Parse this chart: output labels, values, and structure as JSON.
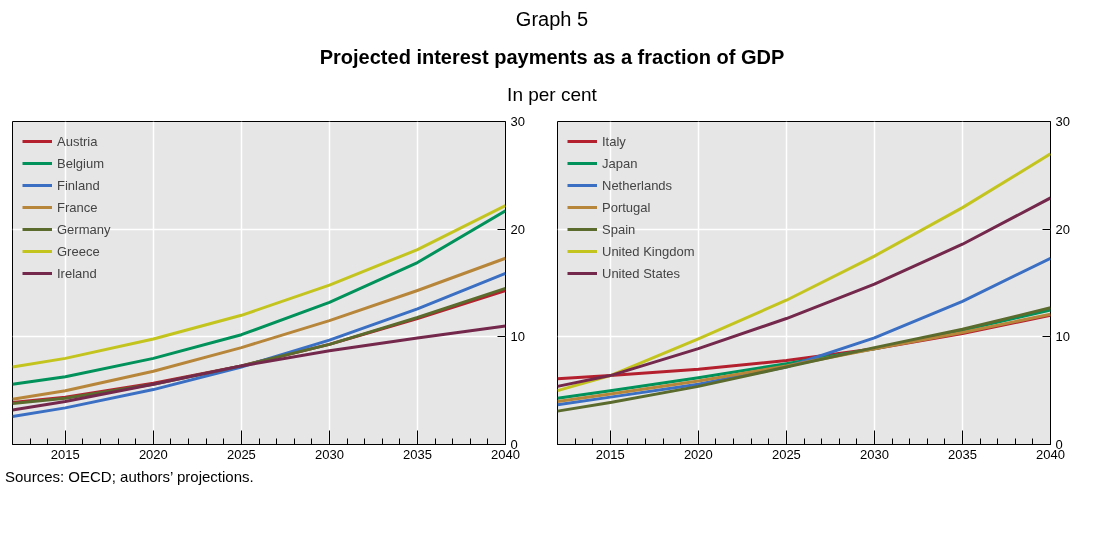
{
  "chart_data": [
    {
      "type": "line",
      "title": "Projected interest payments as a fraction of GDP",
      "subtitle": "In per cent",
      "annotations": [
        "Graph 5",
        "Sources: OECD; authors’ projections."
      ],
      "x": [
        2012,
        2015,
        2020,
        2025,
        2030,
        2035,
        2040
      ],
      "xlim": [
        2012,
        2040
      ],
      "xticks": [
        2015,
        2020,
        2025,
        2030,
        2035,
        2040
      ],
      "ylim": [
        0,
        30
      ],
      "yticks": [
        0,
        10,
        20,
        30
      ],
      "grid": true,
      "legend": "top left",
      "series": [
        {
          "name": "Austria",
          "color": "#b5202e",
          "values": [
            3.9,
            4.4,
            5.7,
            7.3,
            9.3,
            11.7,
            14.3
          ]
        },
        {
          "name": "Belgium",
          "color": "#00925a",
          "values": [
            5.6,
            6.3,
            8.0,
            10.2,
            13.2,
            16.9,
            21.7
          ]
        },
        {
          "name": "Finland",
          "color": "#3a6fc4",
          "values": [
            2.6,
            3.4,
            5.1,
            7.2,
            9.7,
            12.6,
            15.9
          ]
        },
        {
          "name": "France",
          "color": "#b8863a",
          "values": [
            4.2,
            5.0,
            6.8,
            9.0,
            11.5,
            14.3,
            17.3
          ]
        },
        {
          "name": "Germany",
          "color": "#5b6b2e",
          "values": [
            3.8,
            4.3,
            5.6,
            7.3,
            9.3,
            11.8,
            14.5
          ]
        },
        {
          "name": "Greece",
          "color": "#c4c41e",
          "values": [
            7.2,
            8.0,
            9.8,
            12.0,
            14.8,
            18.1,
            22.2
          ]
        },
        {
          "name": "Ireland",
          "color": "#74284c",
          "values": [
            3.2,
            4.0,
            5.6,
            7.3,
            8.7,
            9.9,
            11.0
          ]
        }
      ]
    },
    {
      "type": "line",
      "x": [
        2012,
        2015,
        2020,
        2025,
        2030,
        2035,
        2040
      ],
      "xlim": [
        2012,
        2040
      ],
      "xticks": [
        2015,
        2020,
        2025,
        2030,
        2035,
        2040
      ],
      "ylim": [
        0,
        30
      ],
      "yticks": [
        0,
        10,
        20,
        30
      ],
      "grid": true,
      "legend": "top left",
      "series": [
        {
          "name": "Italy",
          "color": "#b5202e",
          "values": [
            6.1,
            6.4,
            7.0,
            7.8,
            8.9,
            10.3,
            12.0
          ]
        },
        {
          "name": "Japan",
          "color": "#00925a",
          "values": [
            4.3,
            5.0,
            6.2,
            7.5,
            8.9,
            10.6,
            12.5
          ]
        },
        {
          "name": "Netherlands",
          "color": "#3a6fc4",
          "values": [
            3.7,
            4.4,
            5.6,
            7.2,
            9.9,
            13.3,
            17.3
          ]
        },
        {
          "name": "Portugal",
          "color": "#b8863a",
          "values": [
            4.0,
            4.7,
            5.9,
            7.3,
            8.9,
            10.4,
            12.1
          ]
        },
        {
          "name": "Spain",
          "color": "#5b6b2e",
          "values": [
            3.1,
            3.9,
            5.4,
            7.2,
            9.0,
            10.7,
            12.7
          ]
        },
        {
          "name": "United Kingdom",
          "color": "#c4c41e",
          "values": [
            5.0,
            6.4,
            9.8,
            13.4,
            17.5,
            22.0,
            27.0
          ]
        },
        {
          "name": "United States",
          "color": "#74284c",
          "values": [
            5.4,
            6.4,
            8.9,
            11.7,
            14.9,
            18.6,
            22.9
          ]
        }
      ]
    }
  ]
}
